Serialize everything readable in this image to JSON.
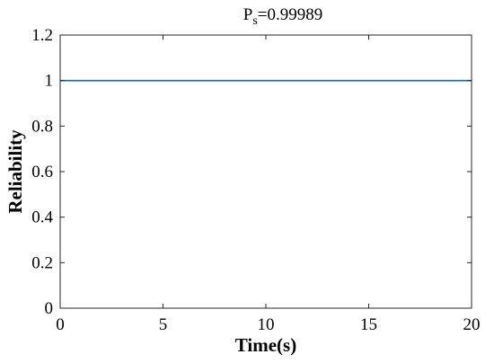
{
  "chart_data": {
    "type": "line",
    "title_main": "P",
    "title_subscript": "s",
    "title_rest": "=0.99989",
    "xlabel": "Time(s)",
    "ylabel": "Reliability",
    "xlim": [
      0,
      20
    ],
    "ylim": [
      0,
      1.2
    ],
    "xticks": [
      0,
      5,
      10,
      15,
      20
    ],
    "xtick_labels": [
      "0",
      "5",
      "10",
      "15",
      "20"
    ],
    "yticks": [
      0,
      0.2,
      0.4,
      0.6,
      0.8,
      1,
      1.2
    ],
    "ytick_labels": [
      "0",
      "0.2",
      "0.4",
      "0.6",
      "0.8",
      "1",
      "1.2"
    ],
    "grid": false,
    "series": [
      {
        "color": "#0072BD",
        "x": [
          0,
          20
        ],
        "y": [
          0.99989,
          0.99989
        ]
      }
    ]
  }
}
